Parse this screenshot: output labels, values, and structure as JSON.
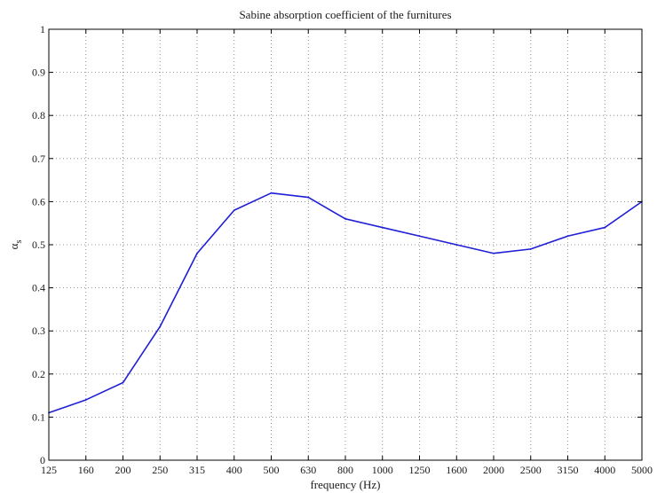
{
  "chart_data": {
    "type": "line",
    "title": "Sabine absorption coefficient of the furnitures",
    "xlabel": "frequency (Hz)",
    "ylabel_symbol": "α",
    "ylabel_subscript": "s",
    "categories": [
      "125",
      "160",
      "200",
      "250",
      "315",
      "400",
      "500",
      "630",
      "800",
      "1000",
      "1250",
      "1600",
      "2000",
      "2500",
      "3150",
      "4000",
      "5000"
    ],
    "series": [
      {
        "values": [
          0.11,
          0.14,
          0.18,
          0.31,
          0.48,
          0.58,
          0.62,
          0.61,
          0.56,
          0.54,
          0.52,
          0.5,
          0.48,
          0.49,
          0.52,
          0.54,
          0.6
        ]
      }
    ],
    "ylim": [
      0,
      1
    ],
    "yticks": [
      "0",
      "0.1",
      "0.2",
      "0.3",
      "0.4",
      "0.5",
      "0.6",
      "0.7",
      "0.8",
      "0.9",
      "1"
    ],
    "grid": true,
    "line_color": "#1f1fd6"
  }
}
